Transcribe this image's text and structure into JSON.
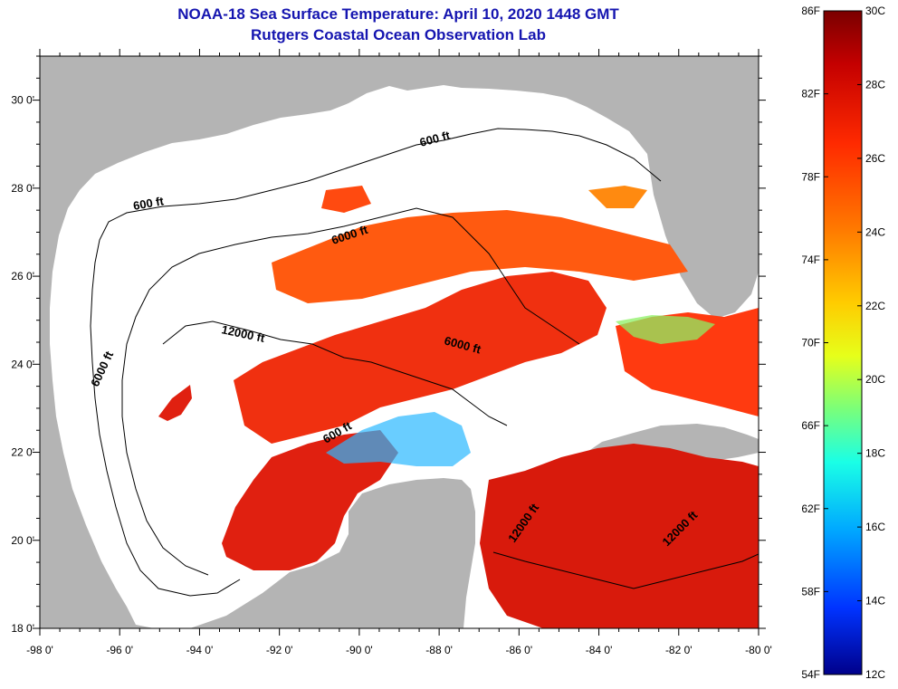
{
  "title_line1": "NOAA-18 Sea Surface Temperature:  April 10, 2020 1448 GMT",
  "title_line2": "Rutgers Coastal Ocean Observation Lab",
  "lat_labels": [
    "30 0'",
    "28 0'",
    "26 0'",
    "24 0'",
    "22 0'",
    "20 0'",
    "18 0'"
  ],
  "lon_labels": [
    "-98 0'",
    "-96 0'",
    "-94 0'",
    "-92 0'",
    "-90 0'",
    "-88 0'",
    "-86 0'",
    "-84 0'",
    "-82 0'",
    "-80 0'"
  ],
  "contours": [
    {
      "label": "600 ft"
    },
    {
      "label": "600 ft"
    },
    {
      "label": "600 ft"
    },
    {
      "label": "6000 ft"
    },
    {
      "label": "6000 ft"
    },
    {
      "label": "6000 ft"
    },
    {
      "label": "12000 ft"
    },
    {
      "label": "12000 ft"
    },
    {
      "label": "12000 ft"
    }
  ],
  "colorbar": {
    "fahrenheit": [
      "86F",
      "82F",
      "78F",
      "74F",
      "70F",
      "66F",
      "62F",
      "58F",
      "54F"
    ],
    "celsius": [
      "30C",
      "28C",
      "26C",
      "24C",
      "22C",
      "20C",
      "18C",
      "16C",
      "14C",
      "12C"
    ],
    "colors": [
      "#7a0000",
      "#c40000",
      "#ff2a00",
      "#ff7a00",
      "#ffcc00",
      "#e6ff1a",
      "#7aff7a",
      "#1affe6",
      "#00aaff",
      "#0033ff",
      "#00008a"
    ]
  },
  "colors": {
    "land": "#b4b4b4",
    "cloud": "#ffffff",
    "title": "#1515b0"
  }
}
